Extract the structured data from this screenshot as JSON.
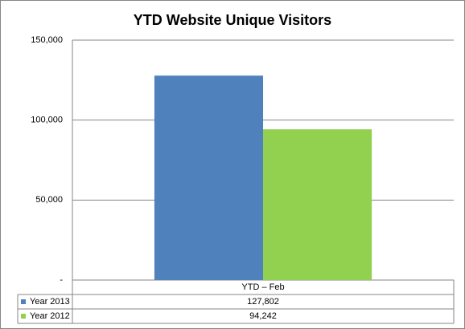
{
  "chart_data": {
    "type": "bar",
    "title": "YTD Website Unique Visitors",
    "categories": [
      "YTD – Feb"
    ],
    "series": [
      {
        "name": "Year 2013",
        "color": "#4f81bd",
        "values": [
          127802
        ],
        "value_labels": [
          "127,802"
        ]
      },
      {
        "name": "Year 2012",
        "color": "#92d050",
        "values": [
          94242
        ],
        "value_labels": [
          "94,242"
        ]
      }
    ],
    "ylim": [
      0,
      150000
    ],
    "yticks": [
      {
        "value": 0,
        "label": "-"
      },
      {
        "value": 50000,
        "label": "50,000"
      },
      {
        "value": 100000,
        "label": "100,000"
      },
      {
        "value": 150000,
        "label": "150,000"
      }
    ],
    "grid": true
  }
}
